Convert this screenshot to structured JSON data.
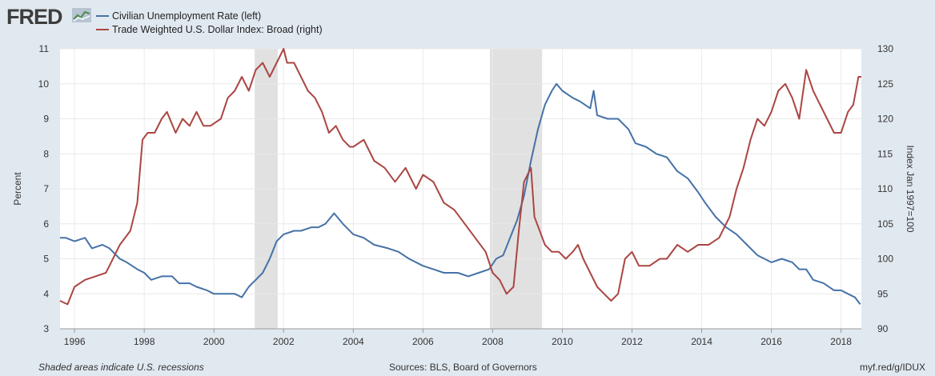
{
  "header": {
    "logo_text": "FRED",
    "logo_icon": "trend-icon",
    "legend": [
      {
        "label": "Civilian Unemployment Rate (left)",
        "color": "#4572a7"
      },
      {
        "label": "Trade Weighted U.S. Dollar Index: Broad (right)",
        "color": "#aa4643"
      }
    ]
  },
  "footer": {
    "note": "Shaded areas indicate U.S. recessions",
    "sources": "Sources: BLS, Board of Governors",
    "link": "myf.red/g/IDUX"
  },
  "chart_data": {
    "type": "line",
    "title": "",
    "xlabel": "",
    "ylabel": "Percent",
    "ylabel_right": "Index Jan 1997=100",
    "xlim": [
      1995.583,
      2018.583
    ],
    "ylim": [
      3,
      11
    ],
    "ylim_right": [
      90,
      130
    ],
    "x_ticks": [
      1996,
      1998,
      2000,
      2002,
      2004,
      2006,
      2008,
      2010,
      2012,
      2014,
      2016,
      2018
    ],
    "y_ticks": [
      3,
      4,
      5,
      6,
      7,
      8,
      9,
      10,
      11
    ],
    "y_ticks_right": [
      90,
      95,
      100,
      105,
      110,
      115,
      120,
      125,
      130
    ],
    "grid": true,
    "recessions": [
      [
        2001.17,
        2001.83
      ],
      [
        2007.92,
        2009.42
      ]
    ],
    "series": [
      {
        "name": "Civilian Unemployment Rate (left)",
        "axis": "left",
        "color": "#4572a7",
        "x": [
          1995.58,
          1995.75,
          1996.0,
          1996.3,
          1996.5,
          1996.8,
          1997.0,
          1997.3,
          1997.5,
          1997.8,
          1998.0,
          1998.2,
          1998.5,
          1998.8,
          1999.0,
          1999.3,
          1999.5,
          1999.8,
          2000.0,
          2000.2,
          2000.4,
          2000.6,
          2000.8,
          2001.0,
          2001.2,
          2001.4,
          2001.6,
          2001.8,
          2002.0,
          2002.3,
          2002.5,
          2002.8,
          2003.0,
          2003.2,
          2003.45,
          2003.7,
          2004.0,
          2004.3,
          2004.6,
          2005.0,
          2005.3,
          2005.6,
          2006.0,
          2006.3,
          2006.6,
          2007.0,
          2007.3,
          2007.6,
          2007.9,
          2008.1,
          2008.3,
          2008.5,
          2008.7,
          2008.9,
          2009.1,
          2009.3,
          2009.5,
          2009.7,
          2009.83,
          2010.0,
          2010.3,
          2010.5,
          2010.8,
          2010.9,
          2011.0,
          2011.3,
          2011.6,
          2011.9,
          2012.1,
          2012.4,
          2012.7,
          2013.0,
          2013.3,
          2013.6,
          2013.9,
          2014.1,
          2014.4,
          2014.7,
          2015.0,
          2015.3,
          2015.6,
          2016.0,
          2016.3,
          2016.6,
          2016.8,
          2017.0,
          2017.2,
          2017.5,
          2017.8,
          2018.0,
          2018.2,
          2018.4,
          2018.55
        ],
        "values": [
          5.6,
          5.6,
          5.5,
          5.6,
          5.3,
          5.4,
          5.3,
          5.0,
          4.9,
          4.7,
          4.6,
          4.4,
          4.5,
          4.5,
          4.3,
          4.3,
          4.2,
          4.1,
          4.0,
          4.0,
          4.0,
          4.0,
          3.9,
          4.2,
          4.4,
          4.6,
          5.0,
          5.5,
          5.7,
          5.8,
          5.8,
          5.9,
          5.9,
          6.0,
          6.3,
          6.0,
          5.7,
          5.6,
          5.4,
          5.3,
          5.2,
          5.0,
          4.8,
          4.7,
          4.6,
          4.6,
          4.5,
          4.6,
          4.7,
          5.0,
          5.1,
          5.6,
          6.1,
          6.8,
          7.8,
          8.7,
          9.4,
          9.8,
          10.0,
          9.8,
          9.6,
          9.5,
          9.3,
          9.8,
          9.1,
          9.0,
          9.0,
          8.7,
          8.3,
          8.2,
          8.0,
          7.9,
          7.5,
          7.3,
          6.9,
          6.6,
          6.2,
          5.9,
          5.7,
          5.4,
          5.1,
          4.9,
          5.0,
          4.9,
          4.7,
          4.7,
          4.4,
          4.3,
          4.1,
          4.1,
          4.0,
          3.9,
          3.7
        ]
      },
      {
        "name": "Trade Weighted U.S. Dollar Index: Broad (right)",
        "axis": "right",
        "color": "#aa4643",
        "x": [
          1995.58,
          1995.8,
          1996.0,
          1996.3,
          1996.6,
          1996.9,
          1997.0,
          1997.3,
          1997.6,
          1997.8,
          1997.95,
          1998.1,
          1998.3,
          1998.5,
          1998.65,
          1998.9,
          1999.1,
          1999.3,
          1999.5,
          1999.7,
          1999.9,
          2000.2,
          2000.4,
          2000.6,
          2000.8,
          2001.0,
          2001.2,
          2001.4,
          2001.6,
          2001.8,
          2002.0,
          2002.1,
          2002.3,
          2002.5,
          2002.7,
          2002.9,
          2003.1,
          2003.3,
          2003.5,
          2003.7,
          2003.9,
          2004.0,
          2004.3,
          2004.6,
          2004.9,
          2005.2,
          2005.5,
          2005.8,
          2006.0,
          2006.3,
          2006.6,
          2006.9,
          2007.2,
          2007.5,
          2007.8,
          2008.0,
          2008.2,
          2008.4,
          2008.6,
          2008.75,
          2008.9,
          2009.1,
          2009.2,
          2009.35,
          2009.5,
          2009.7,
          2009.9,
          2010.1,
          2010.3,
          2010.45,
          2010.6,
          2010.8,
          2011.0,
          2011.2,
          2011.4,
          2011.6,
          2011.8,
          2012.0,
          2012.2,
          2012.5,
          2012.8,
          2013.0,
          2013.3,
          2013.6,
          2013.9,
          2014.2,
          2014.5,
          2014.8,
          2015.0,
          2015.2,
          2015.4,
          2015.6,
          2015.8,
          2016.0,
          2016.2,
          2016.4,
          2016.6,
          2016.8,
          2017.0,
          2017.2,
          2017.4,
          2017.6,
          2017.8,
          2018.0,
          2018.2,
          2018.35,
          2018.5,
          2018.58
        ],
        "values": [
          94,
          93.5,
          96,
          97,
          97.5,
          98,
          99,
          102,
          104,
          108,
          117,
          118,
          118,
          120,
          121,
          118,
          120,
          119,
          121,
          119,
          119,
          120,
          123,
          124,
          126,
          124,
          127,
          128,
          126,
          128,
          130,
          128,
          128,
          126,
          124,
          123,
          121,
          118,
          119,
          117,
          116,
          116,
          117,
          114,
          113,
          111,
          113,
          110,
          112,
          111,
          108,
          107,
          105,
          103,
          101,
          98,
          97,
          95,
          96,
          104,
          111,
          113,
          106,
          104,
          102,
          101,
          101,
          100,
          101,
          102,
          100,
          98,
          96,
          95,
          94,
          95,
          100,
          101,
          99,
          99,
          100,
          100,
          102,
          101,
          102,
          102,
          103,
          106,
          110,
          113,
          117,
          120,
          119,
          121,
          124,
          125,
          123,
          120,
          127,
          124,
          122,
          120,
          118,
          118,
          121,
          122,
          126,
          126
        ]
      }
    ]
  }
}
